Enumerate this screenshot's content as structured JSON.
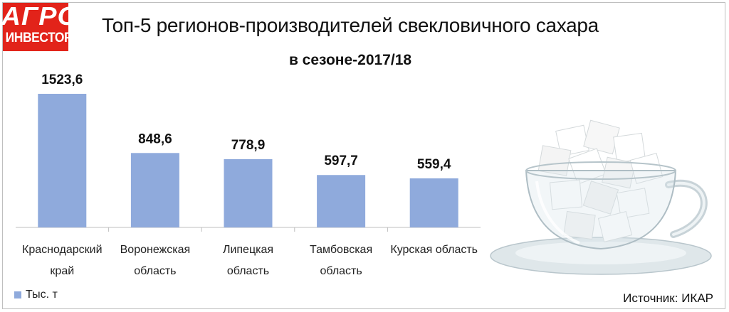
{
  "logo": {
    "line1": "АГРО",
    "line2": "ИНВЕСТОР"
  },
  "chart_data": {
    "type": "bar",
    "title": "Топ-5 регионов-производителей свекловичного сахара",
    "subtitle": "в сезоне-2017/18",
    "categories": [
      [
        "Краснодарский",
        "край"
      ],
      [
        "Воронежская",
        "область"
      ],
      [
        "Липецкая",
        "область"
      ],
      [
        "Тамбовская",
        "область"
      ],
      [
        "Курская область"
      ]
    ],
    "series": [
      {
        "name": "Тыс. т",
        "values": [
          1523.6,
          848.6,
          778.9,
          597.7,
          559.4
        ],
        "color": "#8faadc"
      }
    ],
    "data_labels": [
      "1523,6",
      "848,6",
      "778,9",
      "597,7",
      "559,4"
    ],
    "ylim": [
      0,
      1600
    ],
    "grid": false,
    "legend_position": "bottom-left"
  },
  "source": "Источник: ИКАР",
  "illustration": "sugar-cubes-in-glass-cup"
}
